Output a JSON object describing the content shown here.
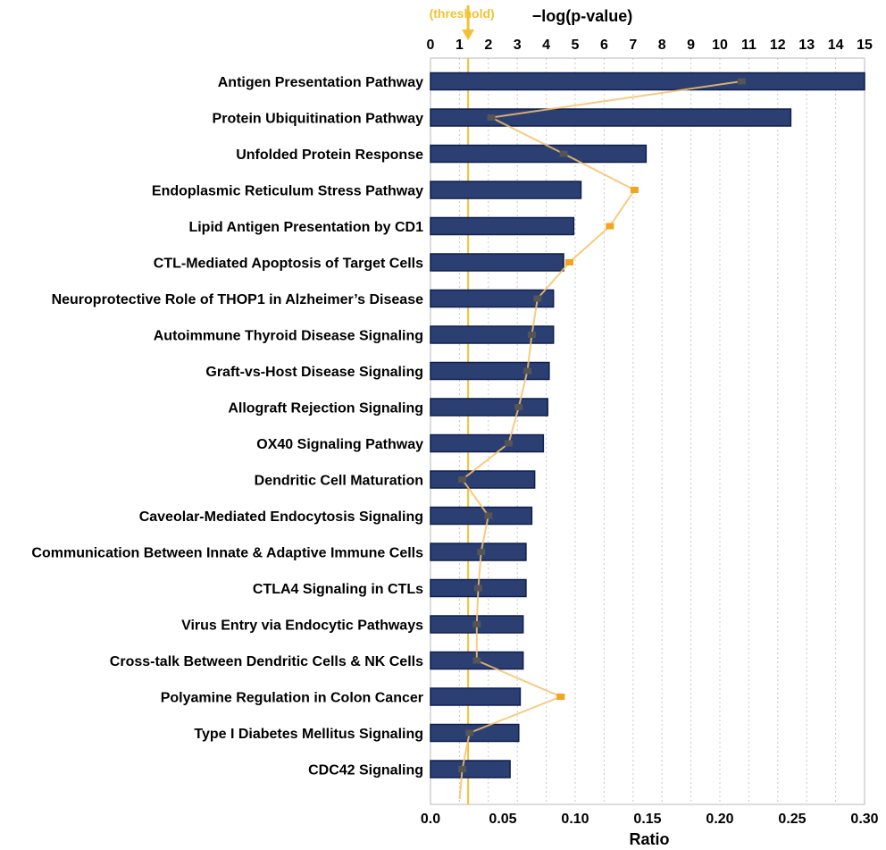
{
  "chart_data": {
    "type": "bar",
    "title": "",
    "categories": [
      "Antigen Presentation Pathway",
      "Protein Ubiquitination Pathway",
      "Unfolded Protein Response",
      "Endoplasmic Reticulum Stress Pathway",
      "Lipid Antigen Presentation by CD1",
      "CTL-Mediated Apoptosis of Target Cells",
      "Neuroprotective Role of THOP1 in Alzheimer’s Disease",
      "Autoimmune Thyroid Disease Signaling",
      "Graft-vs-Host Disease Signaling",
      "Allograft Rejection Signaling",
      "OX40 Signaling Pathway",
      "Dendritic Cell Maturation",
      "Caveolar-Mediated Endocytosis Signaling",
      "Communication Between Innate & Adaptive Immune Cells",
      "CTLA4 Signaling in CTLs",
      "Virus Entry via Endocytic Pathways",
      "Cross-talk Between Dendritic Cells & NK Cells",
      "Polyamine Regulation in Colon Cancer",
      "Type I Diabetes Mellitus Signaling",
      "CDC42 Signaling"
    ],
    "series": [
      {
        "name": "-log(p-value)",
        "axis": "top",
        "mark": "bar",
        "values": [
          15.0,
          12.45,
          7.45,
          5.2,
          4.95,
          4.6,
          4.25,
          4.25,
          4.1,
          4.05,
          3.9,
          3.6,
          3.5,
          3.3,
          3.3,
          3.2,
          3.2,
          3.1,
          3.05,
          2.75
        ]
      },
      {
        "name": "Ratio",
        "axis": "bottom",
        "mark": "line",
        "values": [
          0.215,
          0.042,
          0.092,
          0.141,
          0.124,
          0.096,
          0.074,
          0.07,
          0.067,
          0.061,
          0.054,
          0.022,
          0.04,
          0.035,
          0.033,
          0.032,
          0.032,
          0.09,
          0.027,
          0.022
        ],
        "highlighted": [
          false,
          false,
          false,
          true,
          true,
          true,
          false,
          false,
          false,
          false,
          false,
          false,
          false,
          false,
          false,
          false,
          false,
          true,
          false,
          false
        ]
      }
    ],
    "top_axis": {
      "label": "−log(p-value)",
      "range": [
        0,
        15
      ],
      "ticks": [
        "0",
        "1",
        "2",
        "3",
        "4",
        "5",
        "6",
        "7",
        "8",
        "9",
        "10",
        "11",
        "12",
        "13",
        "14",
        "15"
      ]
    },
    "bottom_axis": {
      "label": "Ratio",
      "range": [
        0.0,
        0.3
      ],
      "ticks": [
        "0.0",
        "0.05",
        "0.10",
        "0.15",
        "0.20",
        "0.25",
        "0.30"
      ]
    },
    "threshold": {
      "label": "(threshold)",
      "value": 1.3
    },
    "grid": "vertical dotted",
    "colors": {
      "bar_fill": "#2b3f73",
      "bar_stroke": "#0f1f4d",
      "line": "#f6c26b",
      "marker": "#555555",
      "marker_highlight": "#f5a31a",
      "threshold": "#f5c132",
      "grid": "#c8c8c8"
    }
  }
}
